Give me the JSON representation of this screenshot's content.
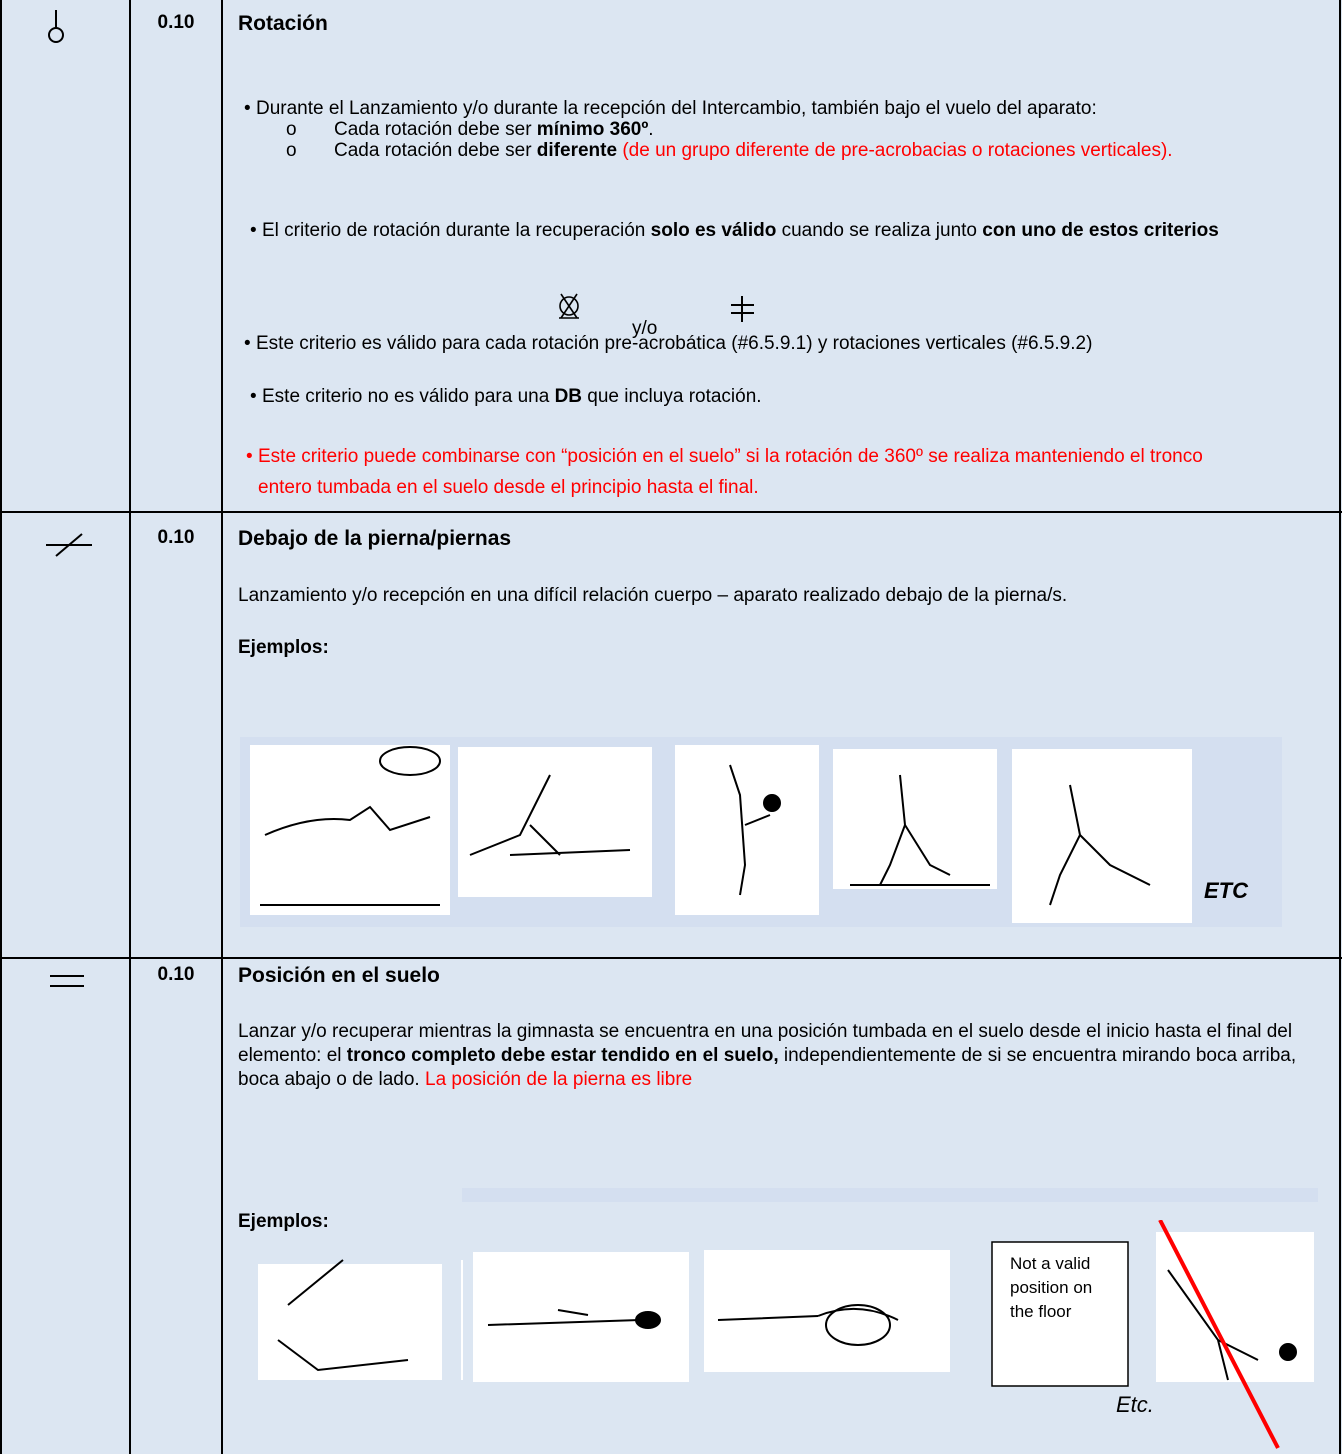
{
  "rows": [
    {
      "value": "0.10",
      "title": "Rotación",
      "intro": "Durante el Lanzamiento y/o durante la recepción del Intercambio, también bajo el vuelo del aparato:",
      "sub": [
        [
          "Cada rotación debe ser ",
          "mínimo 360º",
          "."
        ],
        [
          "Cada rotación debe ser ",
          "diferente",
          " (de un grupo diferente de pre-acrobacias o rotaciones verticales)."
        ]
      ],
      "criterion": [
        "El criterio de rotación durante la recuperación ",
        "solo es válido",
        " cuando se realiza junto ",
        "con uno de estos criterios"
      ],
      "connector": "y/o",
      "notes": [
        "Este criterio es válido para cada rotación pre-acrobática (#6.5.9.1) y rotaciones verticales (#6.5.9.2)",
        [
          "Este criterio no es válido para una ",
          "DB",
          " que incluya rotación."
        ],
        "Este criterio puede combinarse con “posición en el suelo” si la rotación de 360º se realiza manteniendo el tronco entero tumbada en el suelo desde el principio hasta el final."
      ]
    },
    {
      "value": "0.10",
      "title": "Debajo de la pierna/piernas",
      "text": "Lanzamiento y/o recepción en una difícil relación cuerpo – aparato realizado debajo de la pierna/s.",
      "examples_label": "Ejemplos:",
      "etc_label": "ETC"
    },
    {
      "value": "0.10",
      "title": "Posición en el suelo",
      "text": [
        "Lanzar y/o recuperar mientras la gimnasta se encuentra en una posición tumbada en el suelo desde el inicio hasta el final del elemento: el ",
        "tronco completo debe estar tendido en el suelo,",
        " independientemente de si se encuentra mirando boca arriba, boca abajo o de lado. ",
        "La posición de la pierna es libre"
      ],
      "examples_label": "Ejemplos:",
      "note": "Not a valid position on the floor",
      "etc_label": "Etc."
    }
  ]
}
